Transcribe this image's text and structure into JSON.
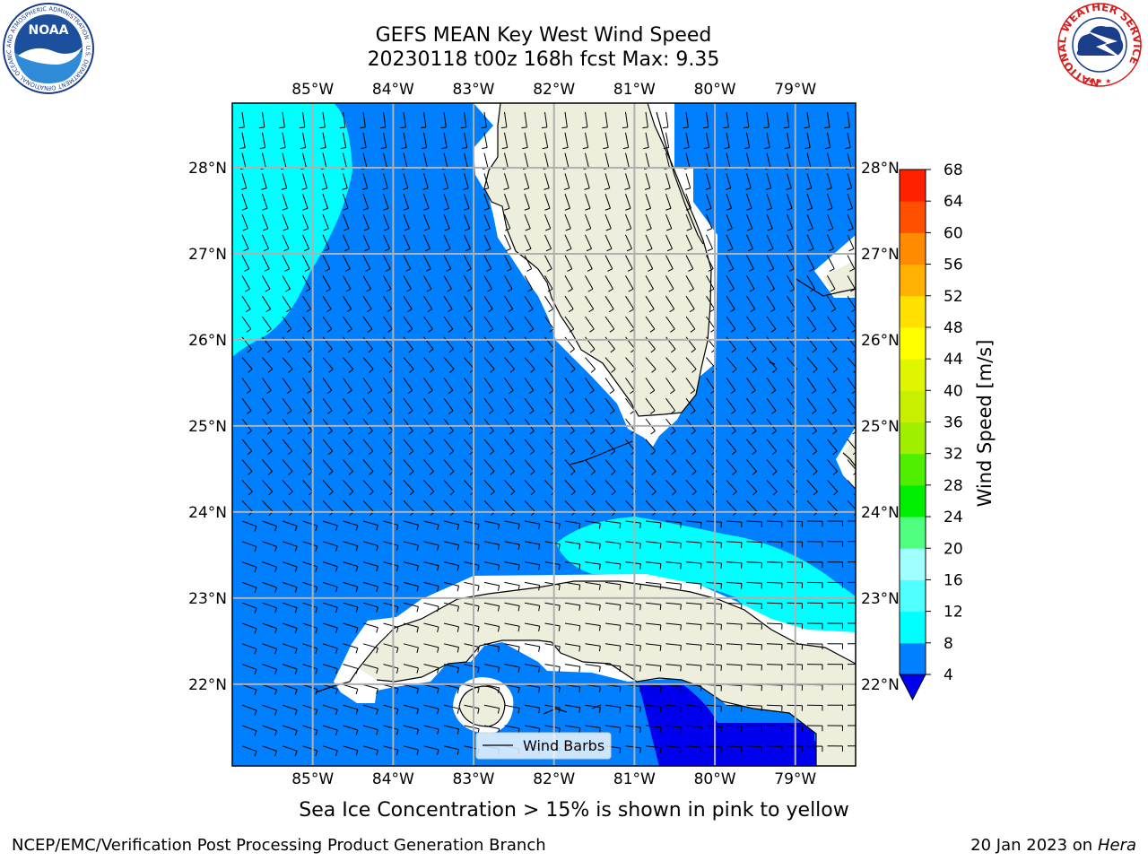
{
  "title": {
    "line1": "GEFS MEAN Key West Wind Speed",
    "line2": "20230118 t00z 168h fcst   Max: 9.35"
  },
  "map": {
    "lon_ticks": [
      "85°W",
      "84°W",
      "83°W",
      "82°W",
      "81°W",
      "80°W",
      "79°W"
    ],
    "lat_ticks": [
      "28°N",
      "27°N",
      "26°N",
      "25°N",
      "24°N",
      "23°N",
      "22°N"
    ],
    "lon_values": [
      -85,
      -84,
      -83,
      -82,
      -81,
      -80,
      -79
    ],
    "lat_values": [
      28,
      27,
      26,
      25,
      24,
      23,
      22
    ],
    "extent": {
      "lon_min": -86,
      "lon_max": -78.25,
      "lat_min": 21.05,
      "lat_max": 28.75
    },
    "colors": {
      "land": "#eeeedd",
      "ocean_4_8": "#0080ff",
      "cyan_8_12": "#00ffff",
      "below_4": "#0000ee",
      "gridline": "#b0b0b0",
      "coast": "#000000"
    },
    "legend_label": "Wind Barbs"
  },
  "colorbar": {
    "label": "Wind Speed [m/s]",
    "ticks": [
      "4",
      "8",
      "12",
      "16",
      "20",
      "24",
      "28",
      "32",
      "36",
      "40",
      "44",
      "48",
      "52",
      "56",
      "60",
      "64",
      "68"
    ],
    "colors": [
      "#0080ff",
      "#00ffff",
      "#50ffff",
      "#a0ffff",
      "#50ff80",
      "#00ee00",
      "#50ee00",
      "#a0ee00",
      "#c8ee00",
      "#e0f500",
      "#ffff00",
      "#ffe000",
      "#ffb000",
      "#ff8c00",
      "#ff5000",
      "#ff2000"
    ],
    "under_color": "#0000ee"
  },
  "subtitle": "Sea Ice Concentration > 15% is shown in pink to yellow",
  "footer": {
    "left": "NCEP/EMC/Verification Post Processing Product Generation Branch",
    "right_prefix": "20 Jan 2023 on ",
    "right_host": "Hera"
  },
  "logos": {
    "noaa": "NOAA",
    "noaa_ring": "NATIONAL OCEANIC AND ATMOSPHERIC ADMINISTRATION · U.S. DEPARTMENT OF COMMERCE",
    "nws_ring": "NATIONAL WEATHER SERVICE"
  }
}
